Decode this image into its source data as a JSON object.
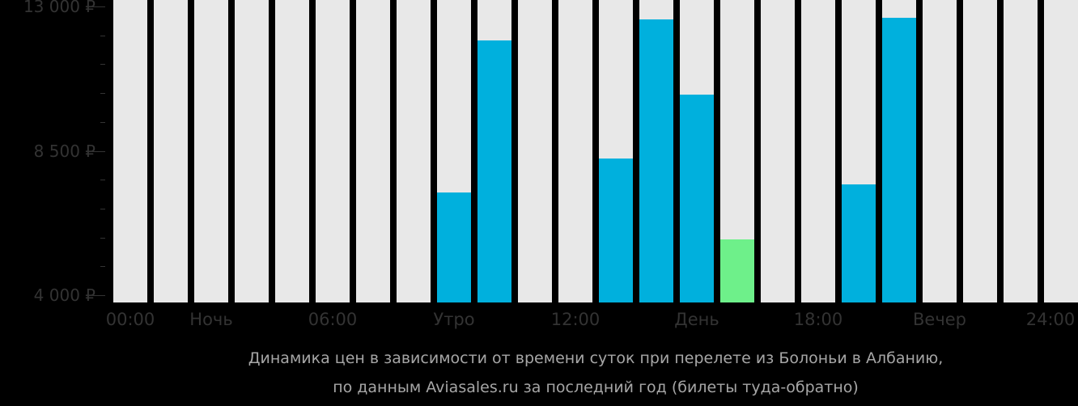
{
  "chart_data": {
    "type": "bar",
    "title": "Динамика цен в зависимости от времени суток при перелете из Болоньи в Албанию, по данным Aviasales.ru за последний год (билеты туда-обратно)",
    "xlabel": "",
    "ylabel": "",
    "ylim": [
      4000,
      13000
    ],
    "yticks": [
      "13 000 ₽",
      "8 500 ₽",
      "4 000 ₽"
    ],
    "ytick_values": [
      13000,
      8500,
      4000
    ],
    "xtick_labels": [
      "00:00",
      "Ночь",
      "06:00",
      "Утро",
      "12:00",
      "День",
      "18:00",
      "Вечер",
      "24:00"
    ],
    "categories": [
      "0",
      "1",
      "2",
      "3",
      "4",
      "5",
      "6",
      "7",
      "8",
      "9",
      "10",
      "11",
      "12",
      "13",
      "14",
      "15",
      "16",
      "17",
      "18",
      "19",
      "20",
      "21",
      "22",
      "23"
    ],
    "values": [
      null,
      null,
      null,
      null,
      null,
      null,
      null,
      null,
      7200,
      11950,
      null,
      null,
      8250,
      12600,
      10250,
      5750,
      null,
      null,
      7450,
      12650,
      null,
      null,
      null,
      null
    ],
    "highlight": {
      "index": 15,
      "label": "cheapest",
      "color": "#6ef08a"
    },
    "bar_color": "#00b0dd",
    "empty_color": "#e8e8e8",
    "grid": false,
    "legend": null
  },
  "axis": {
    "y_labels": [
      "13 000 ₽",
      "8 500 ₽",
      "4 000 ₽"
    ],
    "x_labels": [
      "00:00",
      "Ночь",
      "06:00",
      "Утро",
      "12:00",
      "День",
      "18:00",
      "Вечер",
      "24:00"
    ]
  },
  "caption": {
    "line1": "Динамика цен в зависимости от времени суток при перелете из Болоньи в Албанию,",
    "line2": "по данным Aviasales.ru за последний год (билеты туда-обратно)"
  }
}
